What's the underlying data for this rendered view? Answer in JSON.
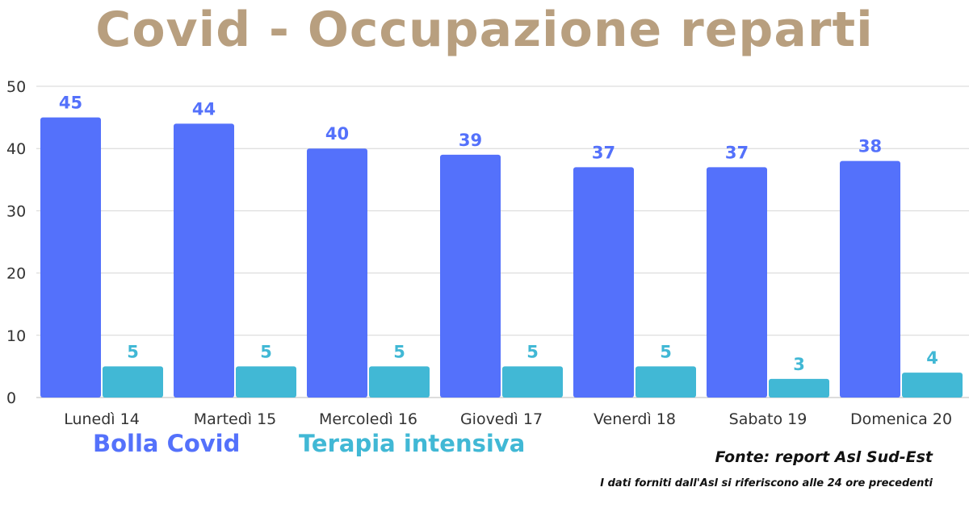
{
  "chart_data": {
    "type": "bar",
    "title": "Covid - Occupazione reparti",
    "categories": [
      "Lunedì 14",
      "Martedì 15",
      "Mercoledì 16",
      "Giovedì 17",
      "Venerdì 18",
      "Sabato 19",
      "Domenica 20"
    ],
    "series": [
      {
        "name": "Bolla Covid",
        "color": "#5471FB",
        "values": [
          45,
          44,
          40,
          39,
          37,
          37,
          38
        ]
      },
      {
        "name": "Terapia intensiva",
        "color": "#41B8D5",
        "values": [
          5,
          5,
          5,
          5,
          5,
          3,
          4
        ]
      }
    ],
    "ylim": [
      0,
      50
    ],
    "yticks": [
      0,
      10,
      20,
      30,
      40,
      50
    ],
    "grid": true,
    "legend_position": "bottom-left",
    "data_labels": true
  },
  "footer": {
    "source": "Fonte: report Asl Sud-Est",
    "note": "I dati forniti dall'Asl si riferiscono alle 24 ore precedenti"
  }
}
